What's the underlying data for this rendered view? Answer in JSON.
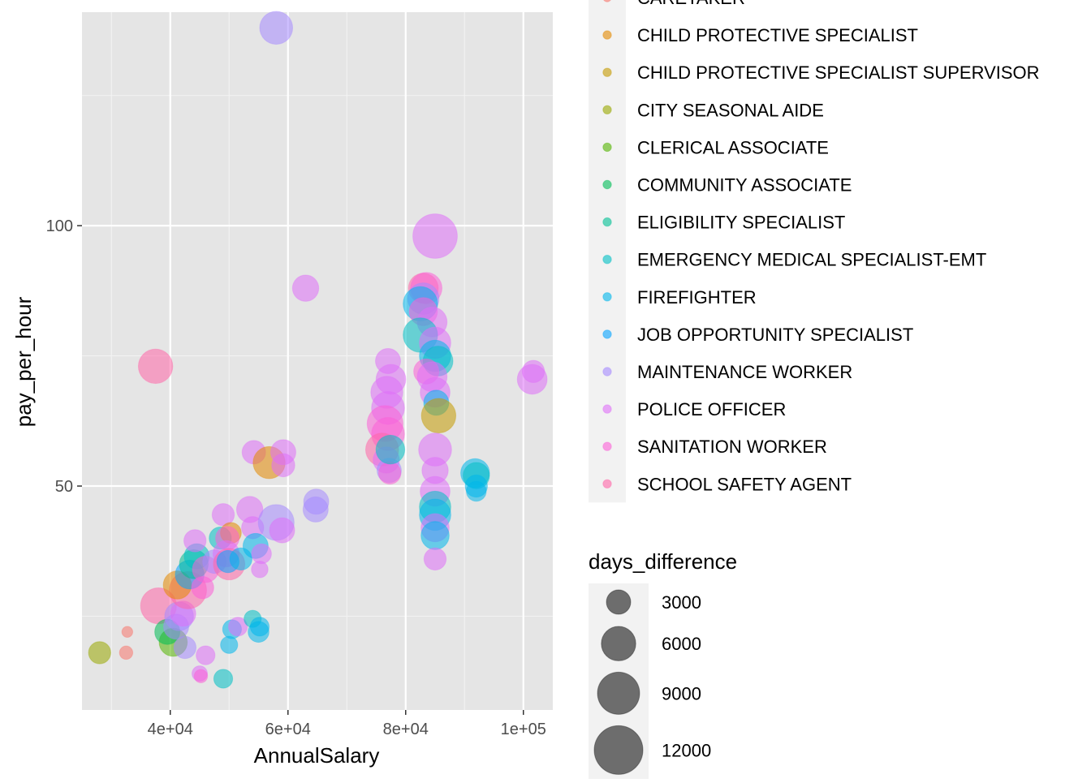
{
  "chart_data": {
    "type": "scatter",
    "xlabel": "AnnualSalary",
    "ylabel": "pay_per_hour",
    "xlim": [
      25000,
      105000
    ],
    "ylim": [
      7,
      141
    ],
    "x_ticks": [
      40000,
      60000,
      80000,
      100000
    ],
    "x_tick_labels": [
      "4e+04",
      "6e+04",
      "8e+04",
      "1e+05"
    ],
    "y_ticks": [
      50,
      100
    ],
    "y_tick_labels": [
      "50",
      "100"
    ],
    "grid": true,
    "panel_background": "#e5e5e5",
    "color_legend": {
      "position": "right",
      "title": "",
      "entries": [
        {
          "label": "CARETAKER",
          "color": "#F8766D"
        },
        {
          "label": "CHILD PROTECTIVE SPECIALIST",
          "color": "#E38900"
        },
        {
          "label": "CHILD PROTECTIVE SPECIALIST SUPERVISOR",
          "color": "#C49A00"
        },
        {
          "label": "CITY SEASONAL AIDE",
          "color": "#99A800"
        },
        {
          "label": "CLERICAL ASSOCIATE",
          "color": "#53B400"
        },
        {
          "label": "COMMUNITY ASSOCIATE",
          "color": "#00BC56"
        },
        {
          "label": "ELIGIBILITY SPECIALIST",
          "color": "#00C094"
        },
        {
          "label": "EMERGENCY MEDICAL SPECIALIST-EMT",
          "color": "#00BFC4"
        },
        {
          "label": "FIREFIGHTER",
          "color": "#00B6EB"
        },
        {
          "label": "JOB OPPORTUNITY SPECIALIST",
          "color": "#06A4FF"
        },
        {
          "label": "MAINTENANCE WORKER",
          "color": "#A58AFF"
        },
        {
          "label": "POLICE OFFICER",
          "color": "#DF70F8"
        },
        {
          "label": "SANITATION WORKER",
          "color": "#FB61D7"
        },
        {
          "label": "SCHOOL SAFETY AGENT",
          "color": "#FF66A8"
        }
      ]
    },
    "size_legend": {
      "title": "days_difference",
      "values": [
        3000,
        6000,
        9000,
        12000
      ],
      "labels": [
        "3000",
        "6000",
        "9000",
        "12000"
      ]
    },
    "points": [
      {
        "x": 58000,
        "y": 138,
        "size": 5500,
        "cat": "MAINTENANCE WORKER"
      },
      {
        "x": 85000,
        "y": 98,
        "size": 10000,
        "cat": "POLICE OFFICER"
      },
      {
        "x": 63000,
        "y": 88,
        "size": 3500,
        "cat": "POLICE OFFICER"
      },
      {
        "x": 37500,
        "y": 73,
        "size": 6000,
        "cat": "SCHOOL SAFETY AGENT"
      },
      {
        "x": 101500,
        "y": 70.5,
        "size": 4500,
        "cat": "POLICE OFFICER"
      },
      {
        "x": 101700,
        "y": 72,
        "size": 2500,
        "cat": "POLICE OFFICER"
      },
      {
        "x": 28000,
        "y": 18,
        "size": 2500,
        "cat": "CITY SEASONAL AIDE"
      },
      {
        "x": 32500,
        "y": 18,
        "size": 900,
        "cat": "CARETAKER"
      },
      {
        "x": 32700,
        "y": 22,
        "size": 600,
        "cat": "CARETAKER"
      },
      {
        "x": 49000,
        "y": 13,
        "size": 1800,
        "cat": "EMERGENCY MEDICAL SPECIALIST-EMT"
      },
      {
        "x": 45000,
        "y": 14,
        "size": 1200,
        "cat": "POLICE OFFICER"
      },
      {
        "x": 45200,
        "y": 13.5,
        "size": 900,
        "cat": "SANITATION WORKER"
      },
      {
        "x": 46000,
        "y": 17.5,
        "size": 1800,
        "cat": "POLICE OFFICER"
      },
      {
        "x": 50000,
        "y": 19.5,
        "size": 1500,
        "cat": "FIREFIGHTER"
      },
      {
        "x": 50500,
        "y": 22.5,
        "size": 1800,
        "cat": "FIREFIGHTER"
      },
      {
        "x": 51500,
        "y": 23,
        "size": 1800,
        "cat": "POLICE OFFICER"
      },
      {
        "x": 54000,
        "y": 24.5,
        "size": 1500,
        "cat": "EMERGENCY MEDICAL SPECIALIST-EMT"
      },
      {
        "x": 55000,
        "y": 22,
        "size": 2200,
        "cat": "FIREFIGHTER"
      },
      {
        "x": 55200,
        "y": 23,
        "size": 1800,
        "cat": "FIREFIGHTER"
      },
      {
        "x": 38000,
        "y": 27,
        "size": 6500,
        "cat": "SCHOOL SAFETY AGENT"
      },
      {
        "x": 40500,
        "y": 20,
        "size": 4000,
        "cat": "CLERICAL ASSOCIATE"
      },
      {
        "x": 39500,
        "y": 22,
        "size": 3200,
        "cat": "COMMUNITY ASSOCIATE"
      },
      {
        "x": 41000,
        "y": 23,
        "size": 3200,
        "cat": "MAINTENANCE WORKER"
      },
      {
        "x": 42500,
        "y": 19,
        "size": 2500,
        "cat": "MAINTENANCE WORKER"
      },
      {
        "x": 41500,
        "y": 25,
        "size": 4200,
        "cat": "MAINTENANCE WORKER"
      },
      {
        "x": 42200,
        "y": 25.5,
        "size": 3200,
        "cat": "POLICE OFFICER"
      },
      {
        "x": 43000,
        "y": 30,
        "size": 7000,
        "cat": "SCHOOL SAFETY AGENT"
      },
      {
        "x": 41200,
        "y": 31,
        "size": 4000,
        "cat": "CHILD PROTECTIVE SPECIALIST"
      },
      {
        "x": 43300,
        "y": 33,
        "size": 4200,
        "cat": "JOB OPPORTUNITY SPECIALIST"
      },
      {
        "x": 44000,
        "y": 35,
        "size": 4200,
        "cat": "ELIGIBILITY SPECIALIST"
      },
      {
        "x": 44500,
        "y": 36.5,
        "size": 3200,
        "cat": "EMERGENCY MEDICAL SPECIALIST-EMT"
      },
      {
        "x": 44200,
        "y": 39.5,
        "size": 2500,
        "cat": "POLICE OFFICER"
      },
      {
        "x": 45500,
        "y": 30.5,
        "size": 2500,
        "cat": "SANITATION WORKER"
      },
      {
        "x": 46000,
        "y": 34,
        "size": 3500,
        "cat": "SANITATION WORKER"
      },
      {
        "x": 47500,
        "y": 35.5,
        "size": 2800,
        "cat": "MAINTENANCE WORKER"
      },
      {
        "x": 48500,
        "y": 40,
        "size": 2500,
        "cat": "EMERGENCY MEDICAL SPECIALIST-EMT"
      },
      {
        "x": 49000,
        "y": 44.5,
        "size": 2500,
        "cat": "POLICE OFFICER"
      },
      {
        "x": 50300,
        "y": 41,
        "size": 2200,
        "cat": "CHILD PROTECTIVE SPECIALIST"
      },
      {
        "x": 49700,
        "y": 40,
        "size": 2800,
        "cat": "SANITATION WORKER"
      },
      {
        "x": 49500,
        "y": 37,
        "size": 3500,
        "cat": "POLICE OFFICER"
      },
      {
        "x": 50000,
        "y": 35,
        "size": 5000,
        "cat": "SCHOOL SAFETY AGENT"
      },
      {
        "x": 49800,
        "y": 35.5,
        "size": 2500,
        "cat": "JOB OPPORTUNITY SPECIALIST"
      },
      {
        "x": 52000,
        "y": 36,
        "size": 2500,
        "cat": "FIREFIGHTER"
      },
      {
        "x": 53500,
        "y": 45.5,
        "size": 3500,
        "cat": "POLICE OFFICER"
      },
      {
        "x": 54000,
        "y": 42,
        "size": 2500,
        "cat": "POLICE OFFICER"
      },
      {
        "x": 54500,
        "y": 38.5,
        "size": 3200,
        "cat": "FIREFIGHTER"
      },
      {
        "x": 55500,
        "y": 37,
        "size": 2000,
        "cat": "POLICE OFFICER"
      },
      {
        "x": 55200,
        "y": 34,
        "size": 1400,
        "cat": "POLICE OFFICER"
      },
      {
        "x": 58000,
        "y": 43,
        "size": 6500,
        "cat": "MAINTENANCE WORKER"
      },
      {
        "x": 59000,
        "y": 41.5,
        "size": 3200,
        "cat": "POLICE OFFICER"
      },
      {
        "x": 54200,
        "y": 56.5,
        "size": 2800,
        "cat": "POLICE OFFICER"
      },
      {
        "x": 56800,
        "y": 54.5,
        "size": 5200,
        "cat": "CHILD PROTECTIVE SPECIALIST"
      },
      {
        "x": 59200,
        "y": 56.5,
        "size": 3200,
        "cat": "POLICE OFFICER"
      },
      {
        "x": 59200,
        "y": 54,
        "size": 2700,
        "cat": "POLICE OFFICER"
      },
      {
        "x": 64800,
        "y": 47,
        "size": 3200,
        "cat": "MAINTENANCE WORKER"
      },
      {
        "x": 64700,
        "y": 45.5,
        "size": 3200,
        "cat": "MAINTENANCE WORKER"
      },
      {
        "x": 77000,
        "y": 74,
        "size": 3200,
        "cat": "POLICE OFFICER"
      },
      {
        "x": 77500,
        "y": 70.5,
        "size": 4500,
        "cat": "POLICE OFFICER"
      },
      {
        "x": 76800,
        "y": 68,
        "size": 5200,
        "cat": "POLICE OFFICER"
      },
      {
        "x": 77000,
        "y": 65,
        "size": 5500,
        "cat": "POLICE OFFICER"
      },
      {
        "x": 76500,
        "y": 62,
        "size": 6500,
        "cat": "SANITATION WORKER"
      },
      {
        "x": 77000,
        "y": 60,
        "size": 5500,
        "cat": "SANITATION WORKER"
      },
      {
        "x": 76000,
        "y": 57,
        "size": 5500,
        "cat": "SCHOOL SAFETY AGENT"
      },
      {
        "x": 76700,
        "y": 55,
        "size": 3500,
        "cat": "POLICE OFFICER"
      },
      {
        "x": 77200,
        "y": 53,
        "size": 3000,
        "cat": "MAINTENANCE WORKER"
      },
      {
        "x": 77300,
        "y": 52.5,
        "size": 2500,
        "cat": "SANITATION WORKER"
      },
      {
        "x": 77400,
        "y": 57,
        "size": 4200,
        "cat": "EMERGENCY MEDICAL SPECIALIST-EMT"
      },
      {
        "x": 83000,
        "y": 88,
        "size": 4500,
        "cat": "SCHOOL SAFETY AGENT"
      },
      {
        "x": 83500,
        "y": 88,
        "size": 5000,
        "cat": "SANITATION WORKER"
      },
      {
        "x": 83000,
        "y": 86,
        "size": 5000,
        "cat": "MAINTENANCE WORKER"
      },
      {
        "x": 82500,
        "y": 85,
        "size": 6000,
        "cat": "FIREFIGHTER"
      },
      {
        "x": 83000,
        "y": 83.5,
        "size": 4000,
        "cat": "SANITATION WORKER"
      },
      {
        "x": 84500,
        "y": 81.5,
        "size": 4500,
        "cat": "POLICE OFFICER"
      },
      {
        "x": 82500,
        "y": 79,
        "size": 6000,
        "cat": "EMERGENCY MEDICAL SPECIALIST-EMT"
      },
      {
        "x": 85000,
        "y": 77.5,
        "size": 5000,
        "cat": "POLICE OFFICER"
      },
      {
        "x": 85000,
        "y": 75,
        "size": 5000,
        "cat": "FIREFIGHTER"
      },
      {
        "x": 85500,
        "y": 74,
        "size": 4500,
        "cat": "EMERGENCY MEDICAL SPECIALIST-EMT"
      },
      {
        "x": 83500,
        "y": 72,
        "size": 3200,
        "cat": "SANITATION WORKER"
      },
      {
        "x": 84500,
        "y": 71,
        "size": 4500,
        "cat": "POLICE OFFICER"
      },
      {
        "x": 85000,
        "y": 68,
        "size": 4500,
        "cat": "POLICE OFFICER"
      },
      {
        "x": 85200,
        "y": 66,
        "size": 3200,
        "cat": "FIREFIGHTER"
      },
      {
        "x": 85600,
        "y": 63.5,
        "size": 6000,
        "cat": "CHILD PROTECTIVE SPECIALIST SUPERVISOR"
      },
      {
        "x": 85000,
        "y": 57,
        "size": 5500,
        "cat": "POLICE OFFICER"
      },
      {
        "x": 85000,
        "y": 53,
        "size": 3500,
        "cat": "POLICE OFFICER"
      },
      {
        "x": 85000,
        "y": 49,
        "size": 4500,
        "cat": "POLICE OFFICER"
      },
      {
        "x": 85000,
        "y": 46,
        "size": 5000,
        "cat": "EMERGENCY MEDICAL SPECIALIST-EMT"
      },
      {
        "x": 85000,
        "y": 44.5,
        "size": 5000,
        "cat": "FIREFIGHTER"
      },
      {
        "x": 85000,
        "y": 42,
        "size": 4000,
        "cat": "POLICE OFFICER"
      },
      {
        "x": 85000,
        "y": 40.5,
        "size": 4000,
        "cat": "FIREFIGHTER"
      },
      {
        "x": 85000,
        "y": 36,
        "size": 2500,
        "cat": "POLICE OFFICER"
      },
      {
        "x": 91800,
        "y": 52.5,
        "size": 4200,
        "cat": "FIREFIGHTER"
      },
      {
        "x": 92000,
        "y": 52,
        "size": 3500,
        "cat": "EMERGENCY MEDICAL SPECIALIST-EMT"
      },
      {
        "x": 92000,
        "y": 50,
        "size": 2500,
        "cat": "FIREFIGHTER"
      },
      {
        "x": 92000,
        "y": 49,
        "size": 2000,
        "cat": "FIREFIGHTER"
      }
    ]
  }
}
